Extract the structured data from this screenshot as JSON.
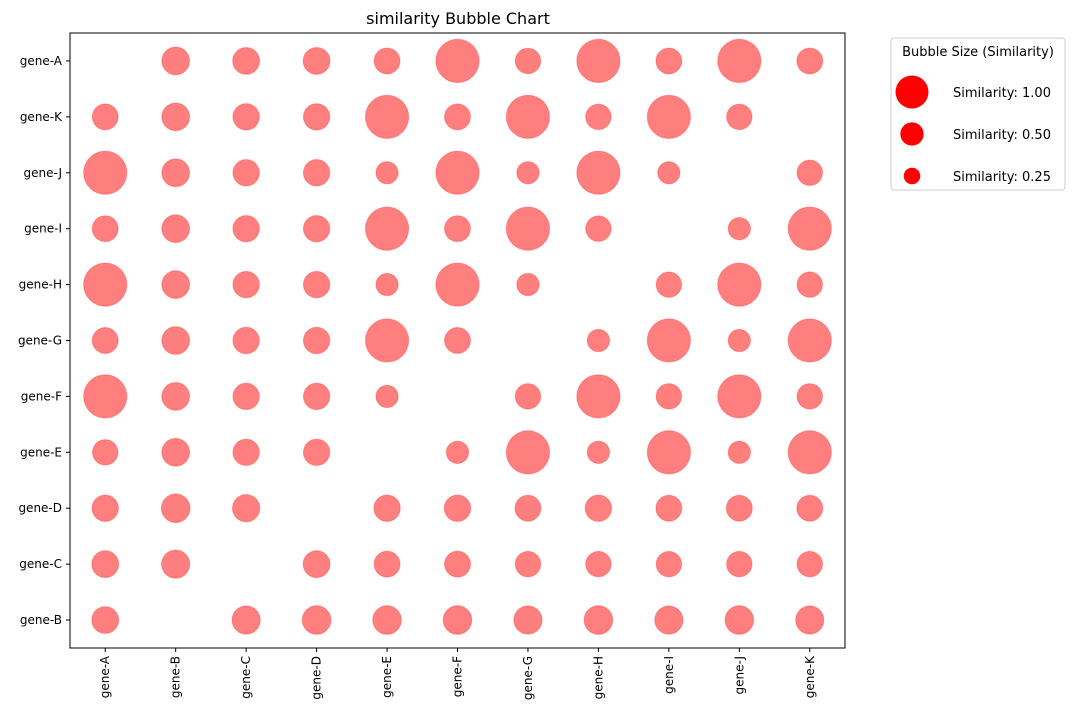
{
  "chart_data": {
    "type": "scatter",
    "title": "similarity Bubble Chart",
    "xlabel": "",
    "ylabel": "",
    "x_categories": [
      "gene-A",
      "gene-B",
      "gene-C",
      "gene-D",
      "gene-E",
      "gene-F",
      "gene-G",
      "gene-H",
      "gene-I",
      "gene-J",
      "gene-K"
    ],
    "y_categories": [
      "gene-B",
      "gene-C",
      "gene-D",
      "gene-E",
      "gene-F",
      "gene-G",
      "gene-H",
      "gene-I",
      "gene-J",
      "gene-K",
      "gene-A"
    ],
    "grid": false,
    "color": "#ff0000",
    "alpha": 0.5,
    "points": [
      {
        "x": "gene-B",
        "y": "gene-A",
        "similarity": 0.31
      },
      {
        "x": "gene-C",
        "y": "gene-A",
        "similarity": 0.29
      },
      {
        "x": "gene-D",
        "y": "gene-A",
        "similarity": 0.29
      },
      {
        "x": "gene-E",
        "y": "gene-A",
        "similarity": 0.27
      },
      {
        "x": "gene-F",
        "y": "gene-A",
        "similarity": 0.75
      },
      {
        "x": "gene-G",
        "y": "gene-A",
        "similarity": 0.26
      },
      {
        "x": "gene-H",
        "y": "gene-A",
        "similarity": 0.75
      },
      {
        "x": "gene-I",
        "y": "gene-A",
        "similarity": 0.27
      },
      {
        "x": "gene-J",
        "y": "gene-A",
        "similarity": 0.75
      },
      {
        "x": "gene-K",
        "y": "gene-A",
        "similarity": 0.27
      },
      {
        "x": "gene-A",
        "y": "gene-K",
        "similarity": 0.27
      },
      {
        "x": "gene-B",
        "y": "gene-K",
        "similarity": 0.31
      },
      {
        "x": "gene-C",
        "y": "gene-K",
        "similarity": 0.28
      },
      {
        "x": "gene-D",
        "y": "gene-K",
        "similarity": 0.28
      },
      {
        "x": "gene-E",
        "y": "gene-K",
        "similarity": 0.75
      },
      {
        "x": "gene-F",
        "y": "gene-K",
        "similarity": 0.27
      },
      {
        "x": "gene-G",
        "y": "gene-K",
        "similarity": 0.75
      },
      {
        "x": "gene-H",
        "y": "gene-K",
        "similarity": 0.26
      },
      {
        "x": "gene-I",
        "y": "gene-K",
        "similarity": 0.75
      },
      {
        "x": "gene-J",
        "y": "gene-K",
        "similarity": 0.26
      },
      {
        "x": "gene-A",
        "y": "gene-J",
        "similarity": 0.75
      },
      {
        "x": "gene-B",
        "y": "gene-J",
        "similarity": 0.31
      },
      {
        "x": "gene-C",
        "y": "gene-J",
        "similarity": 0.28
      },
      {
        "x": "gene-D",
        "y": "gene-J",
        "similarity": 0.28
      },
      {
        "x": "gene-E",
        "y": "gene-J",
        "similarity": 0.2
      },
      {
        "x": "gene-F",
        "y": "gene-J",
        "similarity": 0.75
      },
      {
        "x": "gene-G",
        "y": "gene-J",
        "similarity": 0.2
      },
      {
        "x": "gene-H",
        "y": "gene-J",
        "similarity": 0.75
      },
      {
        "x": "gene-I",
        "y": "gene-J",
        "similarity": 0.2
      },
      {
        "x": "gene-K",
        "y": "gene-J",
        "similarity": 0.26
      },
      {
        "x": "gene-A",
        "y": "gene-I",
        "similarity": 0.27
      },
      {
        "x": "gene-B",
        "y": "gene-I",
        "similarity": 0.31
      },
      {
        "x": "gene-C",
        "y": "gene-I",
        "similarity": 0.28
      },
      {
        "x": "gene-D",
        "y": "gene-I",
        "similarity": 0.28
      },
      {
        "x": "gene-E",
        "y": "gene-I",
        "similarity": 0.75
      },
      {
        "x": "gene-F",
        "y": "gene-I",
        "similarity": 0.27
      },
      {
        "x": "gene-G",
        "y": "gene-I",
        "similarity": 0.75
      },
      {
        "x": "gene-H",
        "y": "gene-I",
        "similarity": 0.26
      },
      {
        "x": "gene-J",
        "y": "gene-I",
        "similarity": 0.2
      },
      {
        "x": "gene-K",
        "y": "gene-I",
        "similarity": 0.75
      },
      {
        "x": "gene-A",
        "y": "gene-H",
        "similarity": 0.75
      },
      {
        "x": "gene-B",
        "y": "gene-H",
        "similarity": 0.31
      },
      {
        "x": "gene-C",
        "y": "gene-H",
        "similarity": 0.28
      },
      {
        "x": "gene-D",
        "y": "gene-H",
        "similarity": 0.28
      },
      {
        "x": "gene-E",
        "y": "gene-H",
        "similarity": 0.2
      },
      {
        "x": "gene-F",
        "y": "gene-H",
        "similarity": 0.75
      },
      {
        "x": "gene-G",
        "y": "gene-H",
        "similarity": 0.2
      },
      {
        "x": "gene-I",
        "y": "gene-H",
        "similarity": 0.26
      },
      {
        "x": "gene-J",
        "y": "gene-H",
        "similarity": 0.75
      },
      {
        "x": "gene-K",
        "y": "gene-H",
        "similarity": 0.26
      },
      {
        "x": "gene-A",
        "y": "gene-G",
        "similarity": 0.27
      },
      {
        "x": "gene-B",
        "y": "gene-G",
        "similarity": 0.31
      },
      {
        "x": "gene-C",
        "y": "gene-G",
        "similarity": 0.28
      },
      {
        "x": "gene-D",
        "y": "gene-G",
        "similarity": 0.28
      },
      {
        "x": "gene-E",
        "y": "gene-G",
        "similarity": 0.75
      },
      {
        "x": "gene-F",
        "y": "gene-G",
        "similarity": 0.27
      },
      {
        "x": "gene-H",
        "y": "gene-G",
        "similarity": 0.2
      },
      {
        "x": "gene-I",
        "y": "gene-G",
        "similarity": 0.75
      },
      {
        "x": "gene-J",
        "y": "gene-G",
        "similarity": 0.2
      },
      {
        "x": "gene-K",
        "y": "gene-G",
        "similarity": 0.75
      },
      {
        "x": "gene-A",
        "y": "gene-F",
        "similarity": 0.75
      },
      {
        "x": "gene-B",
        "y": "gene-F",
        "similarity": 0.31
      },
      {
        "x": "gene-C",
        "y": "gene-F",
        "similarity": 0.28
      },
      {
        "x": "gene-D",
        "y": "gene-F",
        "similarity": 0.28
      },
      {
        "x": "gene-E",
        "y": "gene-F",
        "similarity": 0.2
      },
      {
        "x": "gene-G",
        "y": "gene-F",
        "similarity": 0.26
      },
      {
        "x": "gene-H",
        "y": "gene-F",
        "similarity": 0.75
      },
      {
        "x": "gene-I",
        "y": "gene-F",
        "similarity": 0.26
      },
      {
        "x": "gene-J",
        "y": "gene-F",
        "similarity": 0.75
      },
      {
        "x": "gene-K",
        "y": "gene-F",
        "similarity": 0.26
      },
      {
        "x": "gene-A",
        "y": "gene-E",
        "similarity": 0.26
      },
      {
        "x": "gene-B",
        "y": "gene-E",
        "similarity": 0.31
      },
      {
        "x": "gene-C",
        "y": "gene-E",
        "similarity": 0.28
      },
      {
        "x": "gene-D",
        "y": "gene-E",
        "similarity": 0.28
      },
      {
        "x": "gene-F",
        "y": "gene-E",
        "similarity": 0.2
      },
      {
        "x": "gene-G",
        "y": "gene-E",
        "similarity": 0.75
      },
      {
        "x": "gene-H",
        "y": "gene-E",
        "similarity": 0.2
      },
      {
        "x": "gene-I",
        "y": "gene-E",
        "similarity": 0.75
      },
      {
        "x": "gene-J",
        "y": "gene-E",
        "similarity": 0.2
      },
      {
        "x": "gene-K",
        "y": "gene-E",
        "similarity": 0.75
      },
      {
        "x": "gene-A",
        "y": "gene-D",
        "similarity": 0.28
      },
      {
        "x": "gene-B",
        "y": "gene-D",
        "similarity": 0.33
      },
      {
        "x": "gene-C",
        "y": "gene-D",
        "similarity": 0.3
      },
      {
        "x": "gene-E",
        "y": "gene-D",
        "similarity": 0.28
      },
      {
        "x": "gene-F",
        "y": "gene-D",
        "similarity": 0.28
      },
      {
        "x": "gene-G",
        "y": "gene-D",
        "similarity": 0.27
      },
      {
        "x": "gene-H",
        "y": "gene-D",
        "similarity": 0.28
      },
      {
        "x": "gene-I",
        "y": "gene-D",
        "similarity": 0.27
      },
      {
        "x": "gene-J",
        "y": "gene-D",
        "similarity": 0.27
      },
      {
        "x": "gene-K",
        "y": "gene-D",
        "similarity": 0.27
      },
      {
        "x": "gene-A",
        "y": "gene-C",
        "similarity": 0.29
      },
      {
        "x": "gene-B",
        "y": "gene-C",
        "similarity": 0.32
      },
      {
        "x": "gene-D",
        "y": "gene-C",
        "similarity": 0.29
      },
      {
        "x": "gene-E",
        "y": "gene-C",
        "similarity": 0.27
      },
      {
        "x": "gene-F",
        "y": "gene-C",
        "similarity": 0.27
      },
      {
        "x": "gene-G",
        "y": "gene-C",
        "similarity": 0.26
      },
      {
        "x": "gene-H",
        "y": "gene-C",
        "similarity": 0.26
      },
      {
        "x": "gene-I",
        "y": "gene-C",
        "similarity": 0.26
      },
      {
        "x": "gene-J",
        "y": "gene-C",
        "similarity": 0.26
      },
      {
        "x": "gene-K",
        "y": "gene-C",
        "similarity": 0.26
      },
      {
        "x": "gene-A",
        "y": "gene-B",
        "similarity": 0.29
      },
      {
        "x": "gene-C",
        "y": "gene-B",
        "similarity": 0.32
      },
      {
        "x": "gene-D",
        "y": "gene-B",
        "similarity": 0.33
      },
      {
        "x": "gene-E",
        "y": "gene-B",
        "similarity": 0.33
      },
      {
        "x": "gene-F",
        "y": "gene-B",
        "similarity": 0.33
      },
      {
        "x": "gene-G",
        "y": "gene-B",
        "similarity": 0.32
      },
      {
        "x": "gene-H",
        "y": "gene-B",
        "similarity": 0.33
      },
      {
        "x": "gene-I",
        "y": "gene-B",
        "similarity": 0.32
      },
      {
        "x": "gene-J",
        "y": "gene-B",
        "similarity": 0.33
      },
      {
        "x": "gene-K",
        "y": "gene-B",
        "similarity": 0.32
      }
    ],
    "legend": {
      "title": "Bubble Size (Similarity)",
      "placement": "outside-top-right",
      "entries": [
        {
          "label": "Similarity: 1.00",
          "similarity": 1.0
        },
        {
          "label": "Similarity: 0.50",
          "similarity": 0.5
        },
        {
          "label": "Similarity: 0.25",
          "similarity": 0.25
        }
      ]
    }
  }
}
